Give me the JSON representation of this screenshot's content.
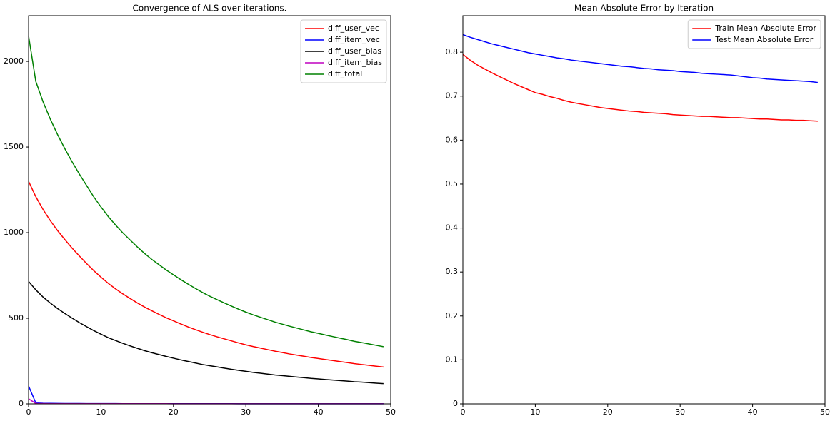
{
  "chart_data": [
    {
      "type": "line",
      "title": "Convergence of ALS over iterations.",
      "x": [
        0,
        1,
        2,
        3,
        4,
        5,
        6,
        7,
        8,
        9,
        10,
        11,
        12,
        13,
        14,
        15,
        16,
        17,
        18,
        19,
        20,
        21,
        22,
        23,
        24,
        25,
        26,
        27,
        28,
        29,
        30,
        31,
        32,
        33,
        34,
        35,
        36,
        37,
        38,
        39,
        40,
        41,
        42,
        43,
        44,
        45,
        46,
        47,
        48,
        49
      ],
      "series": [
        {
          "name": "diff_user_vec",
          "color": "#ff0000",
          "values": [
            1300,
            1210,
            1135,
            1070,
            1012,
            960,
            910,
            864,
            820,
            778,
            740,
            704,
            672,
            643,
            616,
            590,
            566,
            544,
            523,
            503,
            485,
            467,
            450,
            434,
            419,
            405,
            392,
            380,
            368,
            356,
            345,
            335,
            326,
            317,
            308,
            300,
            292,
            285,
            278,
            271,
            265,
            259,
            253,
            247,
            241,
            235,
            230,
            225,
            220,
            215
          ]
        },
        {
          "name": "diff_item_vec",
          "color": "#0000ff",
          "values": [
            105,
            5,
            3.5,
            3,
            2.6,
            2.3,
            2.1,
            1.9,
            1.8,
            1.7,
            1.6,
            1.5,
            1.4,
            1.3,
            1.3,
            1.2,
            1.2,
            1.1,
            1.1,
            1,
            1,
            1,
            0.9,
            0.9,
            0.9,
            0.8,
            0.8,
            0.8,
            0.8,
            0.7,
            0.7,
            0.7,
            0.7,
            0.6,
            0.6,
            0.6,
            0.6,
            0.6,
            0.5,
            0.5,
            0.5,
            0.5,
            0.5,
            0.5,
            0.4,
            0.4,
            0.4,
            0.4,
            0.4,
            0.4
          ]
        },
        {
          "name": "diff_user_bias",
          "color": "#000000",
          "values": [
            715,
            666,
            624,
            589,
            557,
            528,
            501,
            475,
            451,
            428,
            407,
            387,
            370,
            354,
            339,
            325,
            311,
            299,
            288,
            277,
            267,
            257,
            248,
            239,
            230,
            223,
            216,
            209,
            202,
            196,
            190,
            184,
            179,
            174,
            169,
            165,
            161,
            157,
            153,
            149,
            146,
            142,
            139,
            136,
            133,
            129,
            127,
            124,
            121,
            118
          ]
        },
        {
          "name": "diff_item_bias",
          "color": "#bf00bf",
          "values": [
            30,
            2,
            1.5,
            1.3,
            1.2,
            1.1,
            1,
            1,
            0.9,
            0.9,
            0.8,
            0.8,
            0.8,
            0.8,
            0.8,
            0.8,
            0.8,
            0.8,
            0.8,
            0.8,
            0.7,
            0.7,
            0.7,
            0.7,
            0.7,
            0.7,
            0.7,
            0.7,
            0.7,
            0.7,
            0.6,
            0.6,
            0.6,
            0.6,
            0.6,
            0.6,
            0.6,
            0.6,
            0.6,
            0.6,
            0.5,
            0.5,
            0.5,
            0.5,
            0.5,
            0.5,
            0.5,
            0.5,
            0.5,
            0.5
          ]
        },
        {
          "name": "diff_total",
          "color": "#008000",
          "values": [
            2150,
            1883,
            1764,
            1663,
            1573,
            1491,
            1414,
            1343,
            1276,
            1209,
            1150,
            1094,
            1045,
            999,
            958,
            917,
            879,
            844,
            813,
            782,
            754,
            726,
            700,
            675,
            651,
            629,
            609,
            590,
            571,
            553,
            536,
            520,
            506,
            492,
            478,
            466,
            454,
            443,
            432,
            421,
            412,
            402,
            393,
            384,
            375,
            365,
            358,
            350,
            342,
            334
          ]
        }
      ],
      "xlim": [
        0,
        50
      ],
      "xticks": [
        0,
        10,
        20,
        30,
        40,
        50
      ],
      "ylim": [
        0,
        2267
      ],
      "yticks": [
        0,
        500,
        1000,
        1500,
        2000
      ],
      "legend": "upper right"
    },
    {
      "type": "line",
      "title": "Mean Absolute Error by Iteration",
      "x": [
        0,
        1,
        2,
        3,
        4,
        5,
        6,
        7,
        8,
        9,
        10,
        11,
        12,
        13,
        14,
        15,
        16,
        17,
        18,
        19,
        20,
        21,
        22,
        23,
        24,
        25,
        26,
        27,
        28,
        29,
        30,
        31,
        32,
        33,
        34,
        35,
        36,
        37,
        38,
        39,
        40,
        41,
        42,
        43,
        44,
        45,
        46,
        47,
        48,
        49
      ],
      "series": [
        {
          "name": "Train Mean Absolute Error",
          "color": "#ff0000",
          "values": [
            0.795,
            0.782,
            0.771,
            0.762,
            0.753,
            0.745,
            0.737,
            0.729,
            0.722,
            0.715,
            0.708,
            0.704,
            0.699,
            0.695,
            0.69,
            0.686,
            0.683,
            0.68,
            0.677,
            0.674,
            0.672,
            0.67,
            0.668,
            0.666,
            0.665,
            0.663,
            0.662,
            0.661,
            0.66,
            0.658,
            0.657,
            0.656,
            0.655,
            0.654,
            0.654,
            0.653,
            0.652,
            0.651,
            0.651,
            0.65,
            0.649,
            0.648,
            0.648,
            0.647,
            0.646,
            0.646,
            0.645,
            0.645,
            0.644,
            0.643
          ]
        },
        {
          "name": "Test Mean Absolute Error",
          "color": "#0000ff",
          "values": [
            0.84,
            0.834,
            0.829,
            0.824,
            0.819,
            0.815,
            0.811,
            0.807,
            0.803,
            0.799,
            0.796,
            0.793,
            0.79,
            0.787,
            0.785,
            0.782,
            0.78,
            0.778,
            0.776,
            0.774,
            0.772,
            0.77,
            0.768,
            0.767,
            0.765,
            0.763,
            0.762,
            0.76,
            0.759,
            0.758,
            0.756,
            0.755,
            0.754,
            0.752,
            0.751,
            0.75,
            0.749,
            0.748,
            0.746,
            0.744,
            0.742,
            0.741,
            0.739,
            0.738,
            0.737,
            0.736,
            0.735,
            0.734,
            0.733,
            0.731
          ]
        }
      ],
      "xlim": [
        0,
        50
      ],
      "xticks": [
        0,
        10,
        20,
        30,
        40,
        50
      ],
      "ylim": [
        0,
        0.883
      ],
      "yticks": [
        0,
        0.1,
        0.2,
        0.3,
        0.4,
        0.5,
        0.6,
        0.7,
        0.8
      ],
      "legend": "upper right"
    }
  ]
}
